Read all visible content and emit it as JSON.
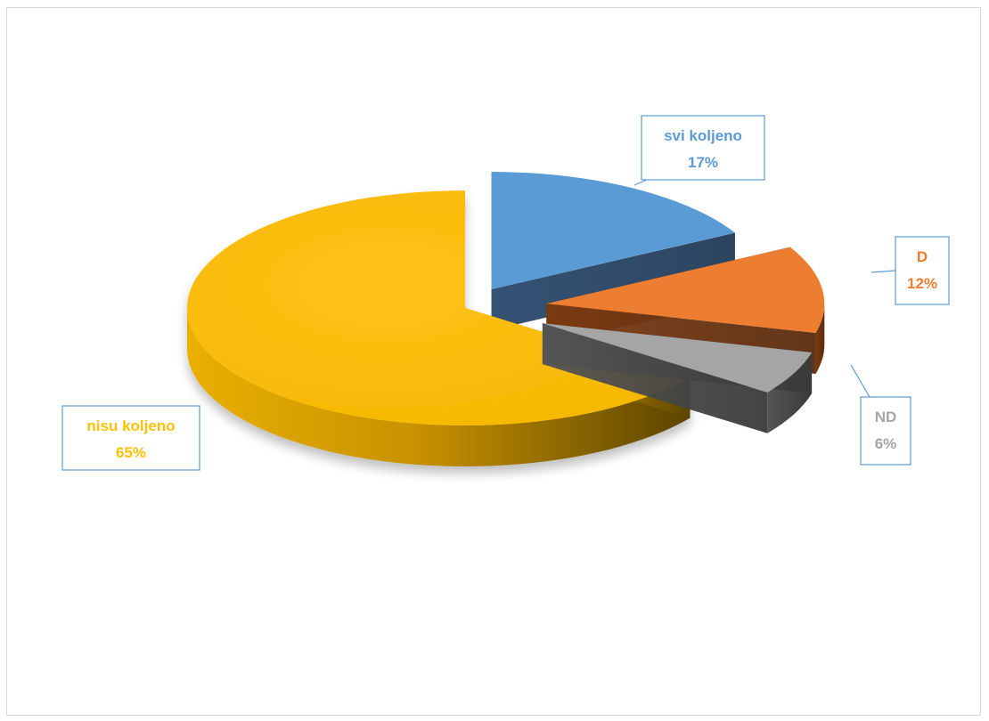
{
  "chart_data": {
    "type": "pie",
    "style": "3d-exploded",
    "categories": [
      "svi koljeno",
      "D",
      "ND",
      "nisu koljeno"
    ],
    "values": [
      17,
      12,
      6,
      65
    ],
    "labels": [
      {
        "name": "svi koljeno",
        "percent": "17%"
      },
      {
        "name": "D",
        "percent": "12%"
      },
      {
        "name": "ND",
        "percent": "6%"
      },
      {
        "name": "nisu koljeno",
        "percent": "65%"
      }
    ],
    "colors": [
      "#5B9BD5",
      "#ED7D31",
      "#A5A5A5",
      "#FFC000"
    ],
    "title": "",
    "legend": "none"
  }
}
